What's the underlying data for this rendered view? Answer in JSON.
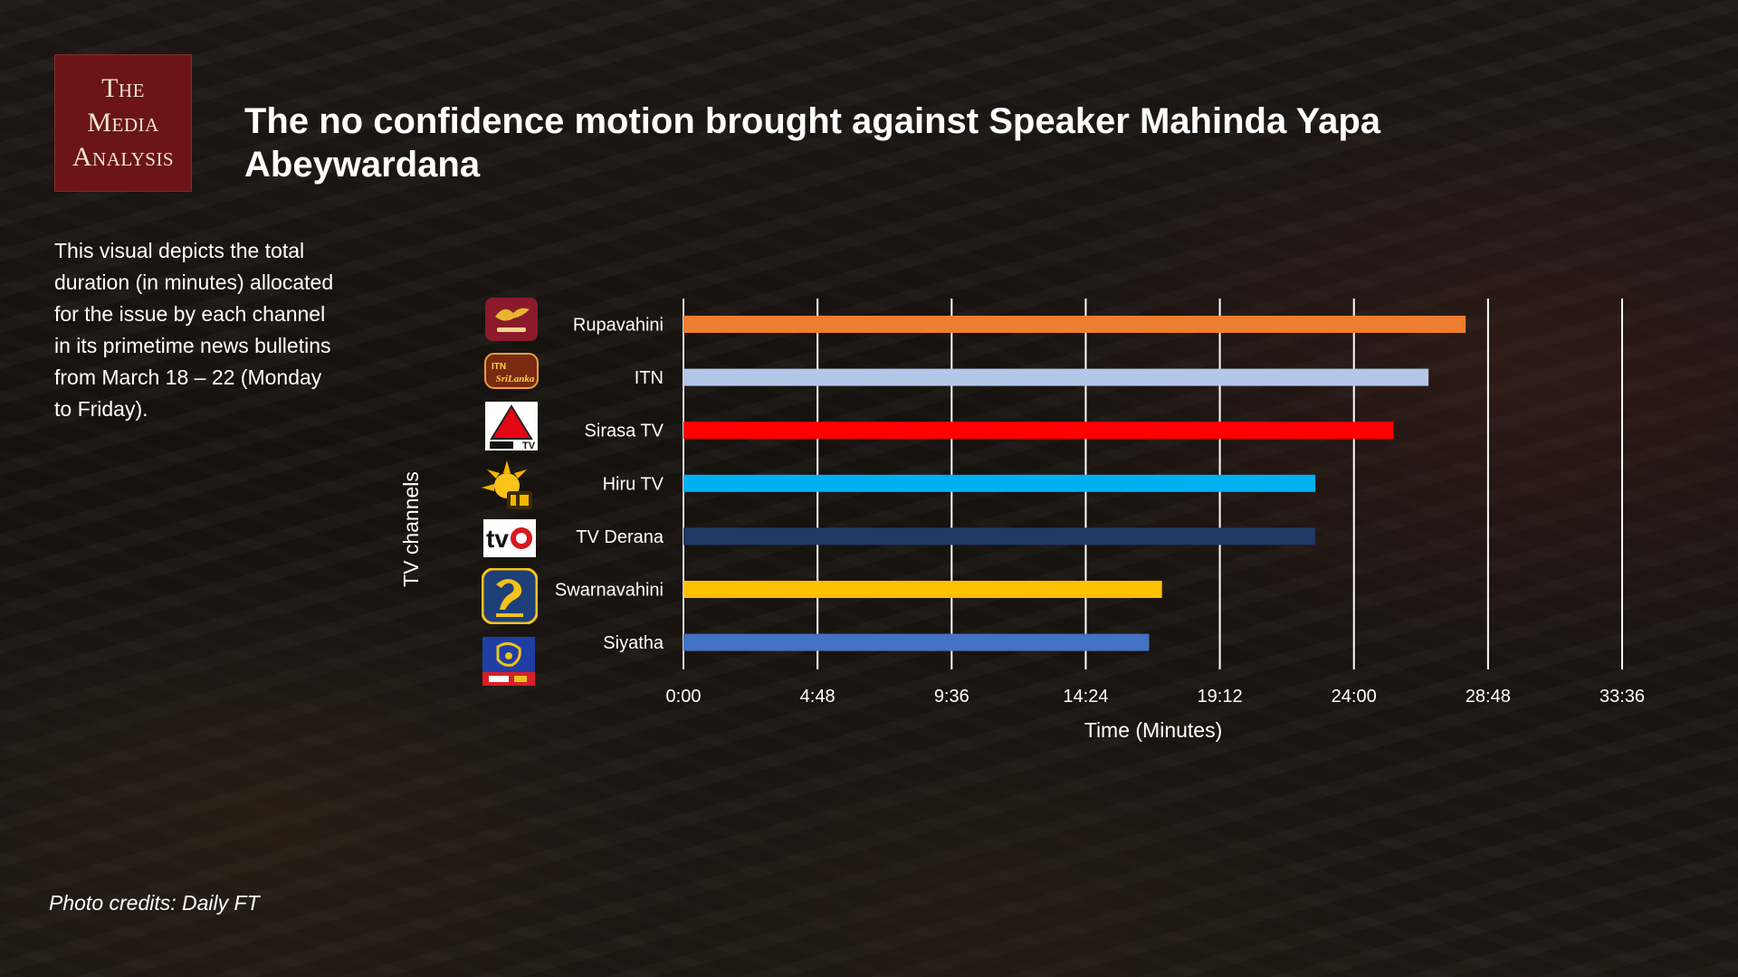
{
  "logo": {
    "line1": "The",
    "line2": "Media",
    "line3": "Analysis"
  },
  "title": "The no confidence motion brought against Speaker Mahinda Yapa Abeywardana",
  "description": "This visual depicts the total duration (in minutes) allocated for the issue by each channel in its primetime news bulletins from March 18 – 22 (Monday to Friday).",
  "credits": "Photo credits: Daily FT",
  "icons": {
    "rupavahini": "rupavahini-logo-icon",
    "itn": "itn-logo-icon",
    "sirasa": "sirasa-tv-logo-icon",
    "hiru": "hiru-tv-logo-icon",
    "derana": "tv-derana-logo-icon",
    "swarnavahini": "swarnavahini-logo-icon",
    "siyatha": "siyatha-tv-logo-icon"
  },
  "icon_text": {
    "itn_top": "ITN",
    "itn_bottom": "SriLanka",
    "sirasa": "TV",
    "derana": "tv"
  },
  "chart_data": {
    "type": "bar",
    "orientation": "horizontal",
    "categories": [
      "Rupavahini",
      "ITN",
      "Sirasa TV",
      "Hiru TV",
      "TV Derana",
      "Swarnavahini",
      "Siyatha"
    ],
    "values": [
      28.0,
      26.67,
      25.42,
      22.62,
      22.62,
      17.13,
      16.67
    ],
    "colors": [
      "#ED7D31",
      "#B4C7E7",
      "#FF0000",
      "#00B0F0",
      "#1F3864",
      "#FFC000",
      "#4472C4"
    ],
    "xlabel": "Time (Minutes)",
    "ylabel": "TV channels",
    "xlim": [
      0,
      33.6
    ],
    "xticks": [
      0,
      4.8,
      9.6,
      14.4,
      19.2,
      24.0,
      28.8,
      33.6
    ],
    "xtick_labels": [
      "0:00",
      "4:48",
      "9:36",
      "14:24",
      "19:12",
      "24:00",
      "28:48",
      "33:36"
    ],
    "grid": true
  }
}
